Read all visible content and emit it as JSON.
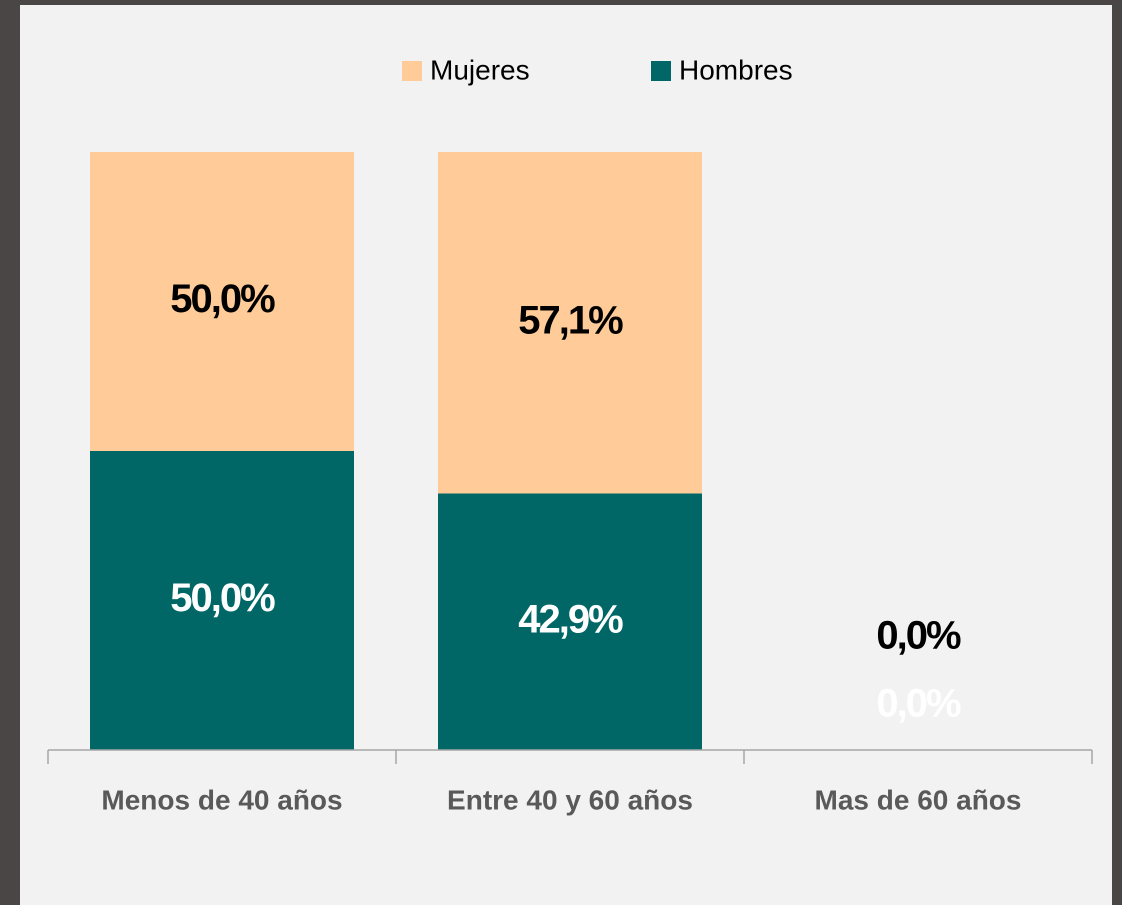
{
  "chart_data": {
    "type": "stacked_bar",
    "categories": [
      "Menos de 40 años",
      "Entre 40 y 60 años",
      "Mas de 60 años"
    ],
    "series": [
      {
        "name": "Mujeres",
        "color": "#ffcc99",
        "label_color": "#000000",
        "values": [
          50.0,
          57.1,
          0.0
        ],
        "value_labels": [
          "50,0%",
          "57,1%",
          "0,0%"
        ]
      },
      {
        "name": "Hombres",
        "color": "#006666",
        "label_color": "#ffffff",
        "values": [
          50.0,
          42.9,
          0.0
        ],
        "value_labels": [
          "50,0%",
          "42,9%",
          "0,0%"
        ]
      }
    ],
    "ylim": [
      0,
      100
    ],
    "legend": "top"
  }
}
